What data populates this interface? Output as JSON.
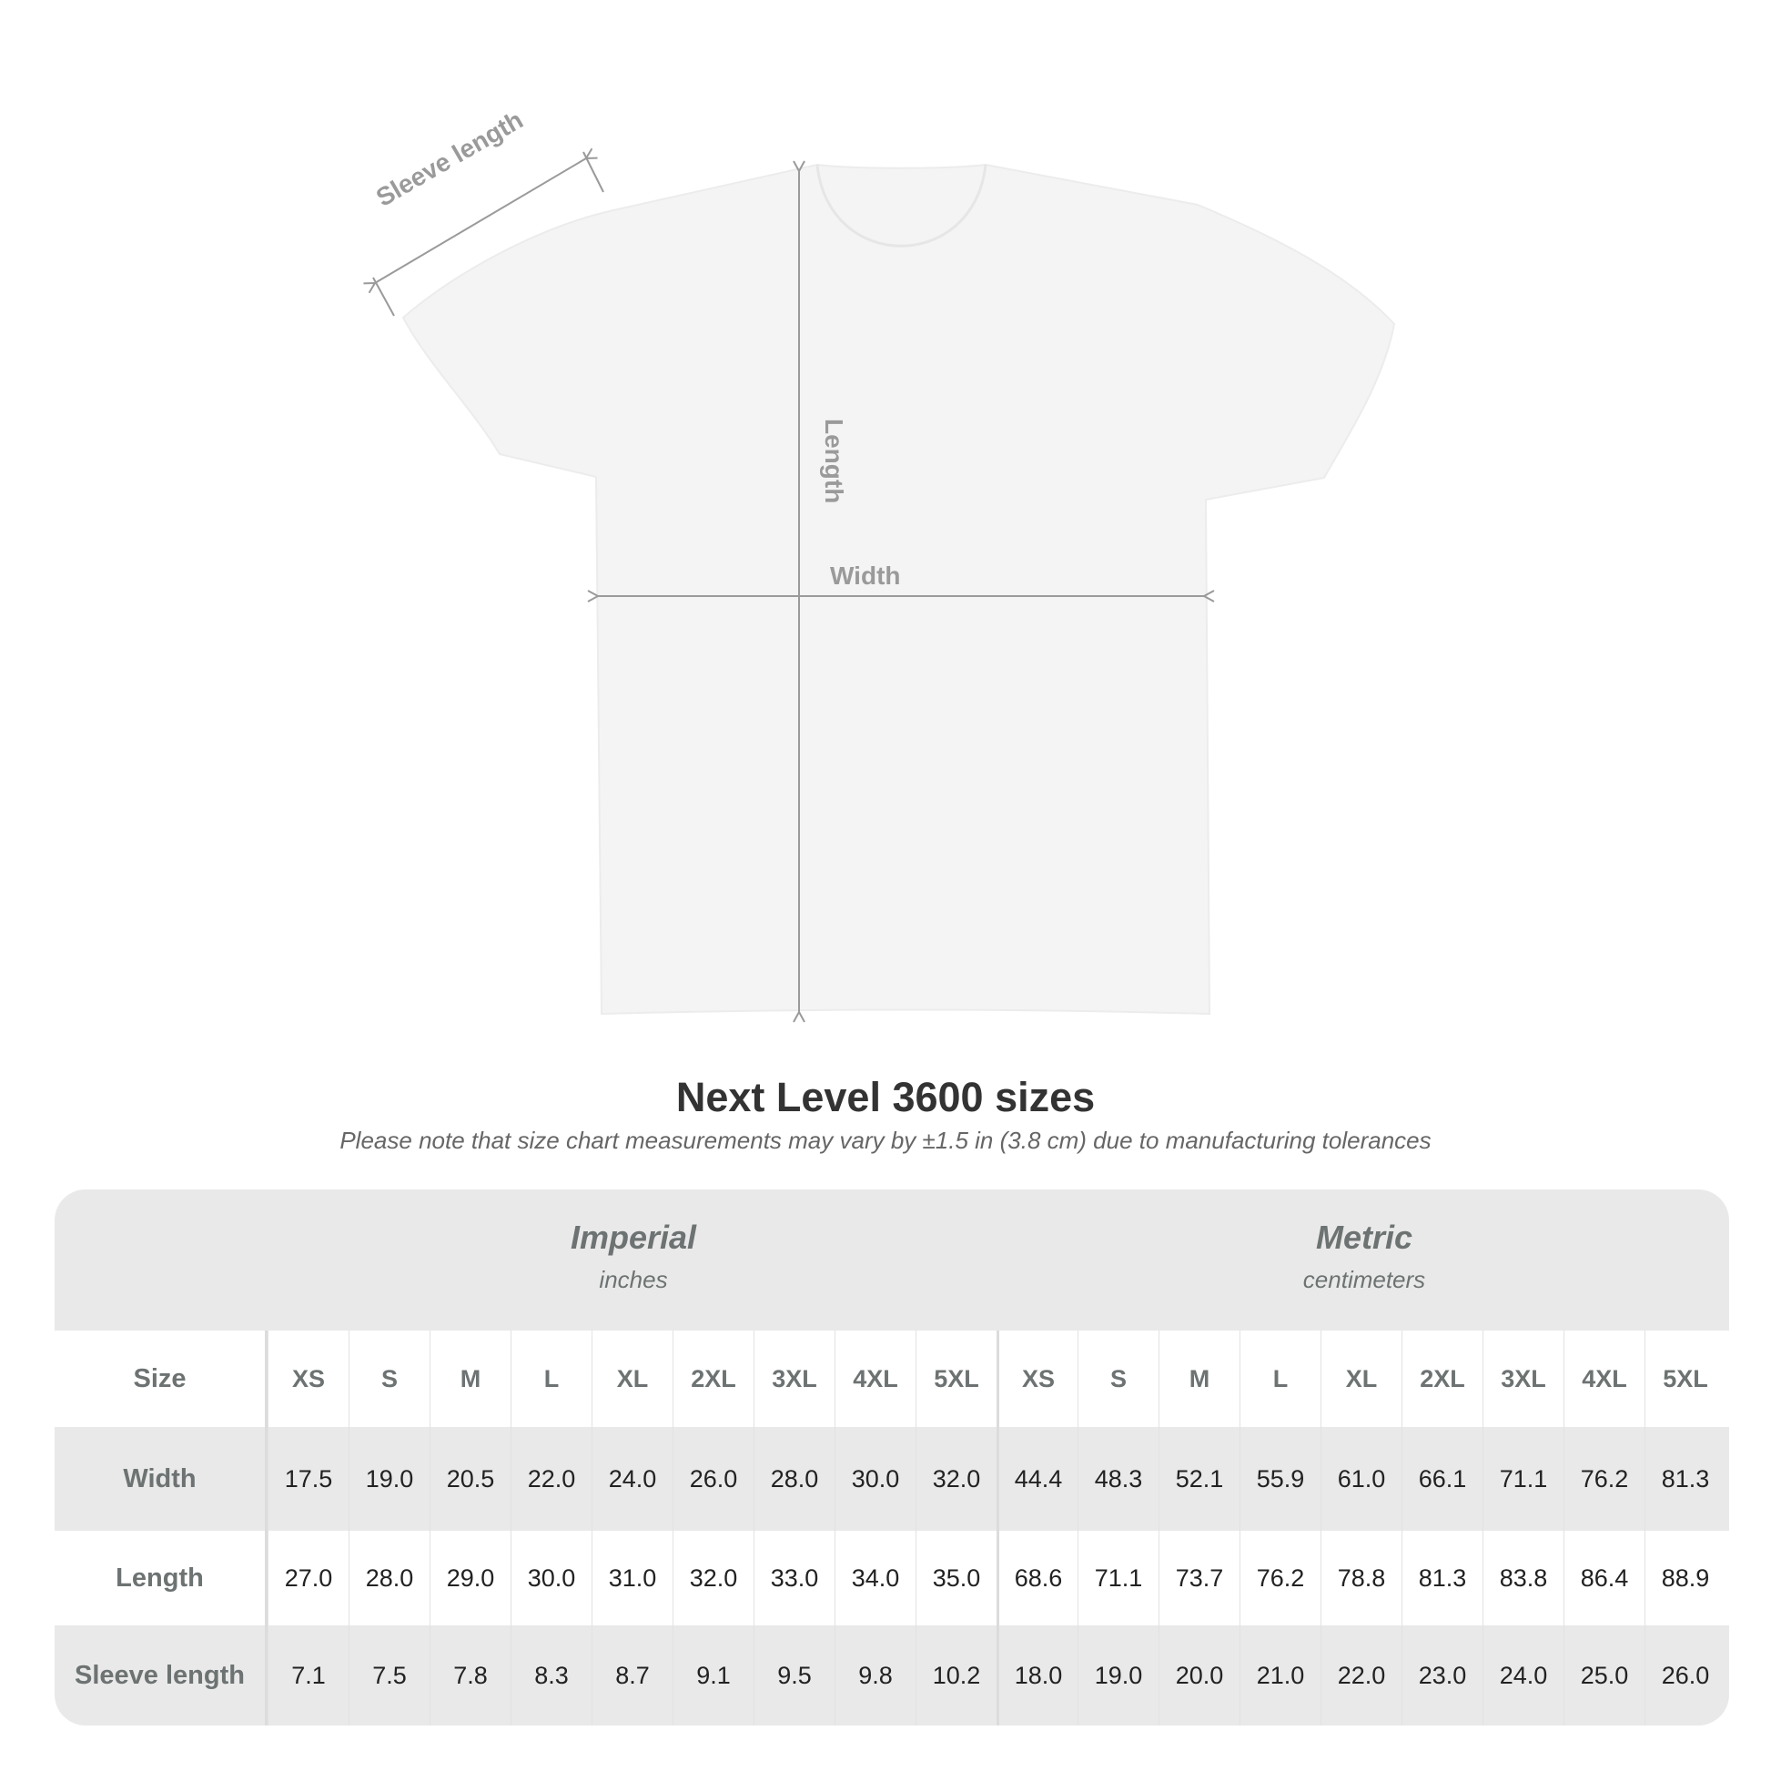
{
  "diagram": {
    "labels": {
      "sleeve": "Sleeve length",
      "length": "Length",
      "width": "Width"
    },
    "shirt_color": "#f4f4f4",
    "arrow_color": "#9a9a9a"
  },
  "title": "Next Level 3600 sizes",
  "note": "Please note that size chart measurements may vary by ±1.5 in (3.8 cm) due to manufacturing tolerances",
  "table": {
    "imperial": {
      "name": "Imperial",
      "unit": "inches"
    },
    "metric": {
      "name": "Metric",
      "unit": "centimeters"
    },
    "size_label": "Size",
    "sizes": [
      "XS",
      "S",
      "M",
      "L",
      "XL",
      "2XL",
      "3XL",
      "4XL",
      "5XL"
    ],
    "rows": [
      {
        "label": "Width",
        "imperial": [
          "17.5",
          "19.0",
          "20.5",
          "22.0",
          "24.0",
          "26.0",
          "28.0",
          "30.0",
          "32.0"
        ],
        "metric": [
          "44.4",
          "48.3",
          "52.1",
          "55.9",
          "61.0",
          "66.1",
          "71.1",
          "76.2",
          "81.3"
        ]
      },
      {
        "label": "Length",
        "imperial": [
          "27.0",
          "28.0",
          "29.0",
          "30.0",
          "31.0",
          "32.0",
          "33.0",
          "34.0",
          "35.0"
        ],
        "metric": [
          "68.6",
          "71.1",
          "73.7",
          "76.2",
          "78.8",
          "81.3",
          "83.8",
          "86.4",
          "88.9"
        ]
      },
      {
        "label": "Sleeve length",
        "imperial": [
          "7.1",
          "7.5",
          "7.8",
          "8.3",
          "8.7",
          "9.1",
          "9.5",
          "9.8",
          "10.2"
        ],
        "metric": [
          "18.0",
          "19.0",
          "20.0",
          "21.0",
          "22.0",
          "23.0",
          "24.0",
          "25.0",
          "26.0"
        ]
      }
    ]
  }
}
